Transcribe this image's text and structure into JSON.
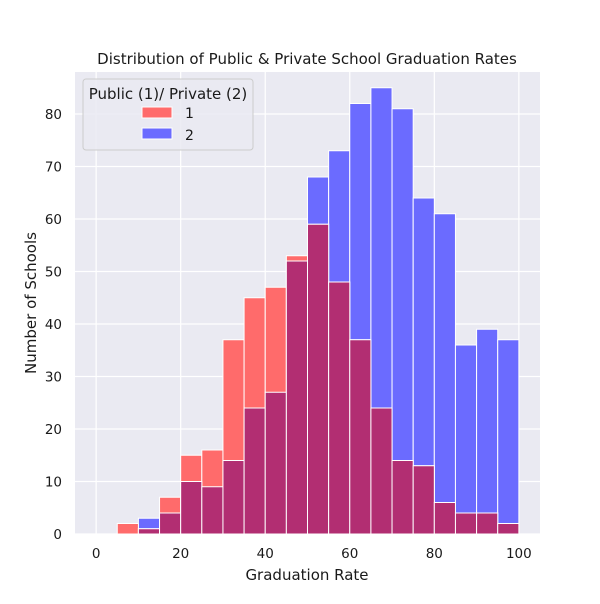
{
  "chart_data": {
    "type": "bar",
    "title": "Distribution of Public & Private School Graduation Rates",
    "xlabel": "Graduation Rate",
    "ylabel": "Number of Schools",
    "xlim": [
      -5,
      105
    ],
    "ylim": [
      0,
      88
    ],
    "x_ticks": [
      0,
      20,
      40,
      60,
      80,
      100
    ],
    "y_ticks": [
      0,
      10,
      20,
      30,
      40,
      50,
      60,
      70,
      80
    ],
    "grid": true,
    "legend": {
      "title": "Public (1)/ Private (2)",
      "placement": "top-left"
    },
    "bin_edges": [
      5,
      10,
      15,
      20,
      25,
      30,
      35,
      40,
      45,
      50,
      55,
      60,
      65,
      70,
      75,
      80,
      85,
      90,
      95,
      100
    ],
    "series": [
      {
        "name": "1",
        "color": "#ff6b6b",
        "values": [
          2,
          1,
          7,
          15,
          16,
          37,
          45,
          47,
          53,
          59,
          48,
          37,
          24,
          14,
          13,
          6,
          4,
          4,
          2
        ]
      },
      {
        "name": "2",
        "color": "#6b6bff",
        "values": [
          0,
          3,
          4,
          10,
          9,
          14,
          24,
          27,
          52,
          68,
          73,
          82,
          85,
          81,
          64,
          61,
          36,
          39,
          37
        ]
      }
    ],
    "overlap_color": "#b22e72",
    "background_color": "#eaeaf2"
  }
}
